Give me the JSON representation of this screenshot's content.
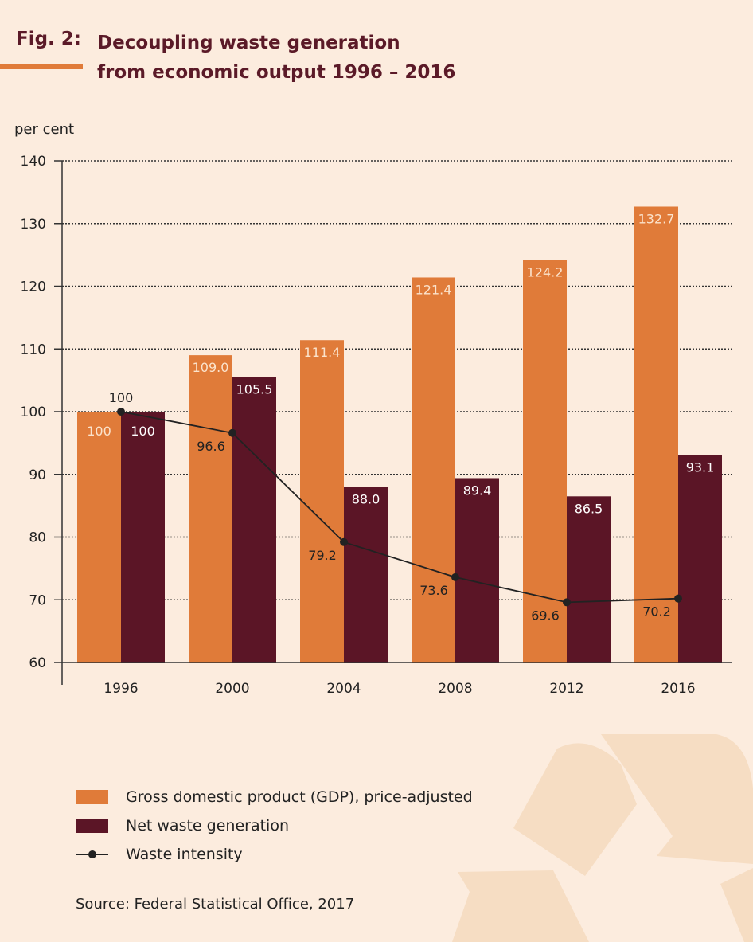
{
  "figure": {
    "number": "Fig. 2:",
    "title_line1": "Decoupling waste generation",
    "title_line2": "from economic output 1996 – 2016"
  },
  "source": "Source: Federal Statistical Office, 2017",
  "colors": {
    "background": "#fcecde",
    "gdp": "#e07b39",
    "waste": "#5b1526",
    "intensity": "#222222",
    "title": "#5b1a28",
    "watermark": "#f6ddc3"
  },
  "watermark_icon": "recycling-icon",
  "chart_data": {
    "type": "bar",
    "ylabel": "per cent",
    "ylim": [
      60,
      140
    ],
    "yticks": [
      60,
      70,
      80,
      90,
      100,
      110,
      120,
      130,
      140
    ],
    "grid": true,
    "legend_position": "bottom-left",
    "categories": [
      "1996",
      "2000",
      "2004",
      "2008",
      "2012",
      "2016"
    ],
    "series": [
      {
        "name": "Gross domestic product (GDP), price-adjusted",
        "type": "bar",
        "values": [
          100,
          109.0,
          111.4,
          121.4,
          124.2,
          132.7
        ],
        "labels": [
          "100",
          "109.0",
          "111.4",
          "121.4",
          "124.2",
          "132.7"
        ]
      },
      {
        "name": "Net waste generation",
        "type": "bar",
        "values": [
          100,
          105.5,
          88.0,
          89.4,
          86.5,
          93.1
        ],
        "labels": [
          "100",
          "105.5",
          "88.0",
          "89.4",
          "86.5",
          "93.1"
        ]
      },
      {
        "name": "Waste intensity",
        "type": "line",
        "values": [
          100,
          96.6,
          79.2,
          73.6,
          69.6,
          70.2
        ],
        "labels": [
          "100",
          "96.6",
          "79.2",
          "73.6",
          "69.6",
          "70.2"
        ]
      }
    ]
  }
}
